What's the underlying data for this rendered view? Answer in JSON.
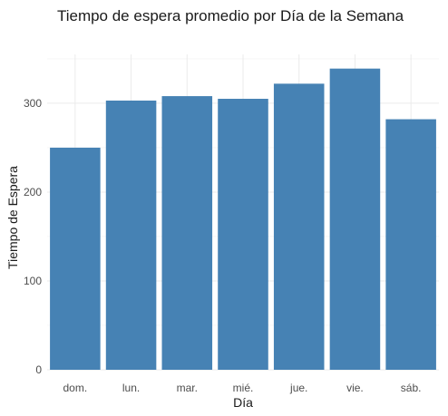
{
  "chart_data": {
    "type": "bar",
    "title": "Tiempo de espera promedio por Día de la Semana",
    "xlabel": "Día",
    "ylabel": "Tiempo de Espera",
    "categories": [
      "dom.",
      "lun.",
      "mar.",
      "mié.",
      "jue.",
      "vie.",
      "sáb."
    ],
    "values": [
      250,
      303,
      308,
      305,
      322,
      339,
      282
    ],
    "ylim": [
      0,
      355
    ],
    "yticks": [
      0,
      100,
      200,
      300
    ],
    "grid": true,
    "legend": "none",
    "bar_color": "#4682B4"
  }
}
